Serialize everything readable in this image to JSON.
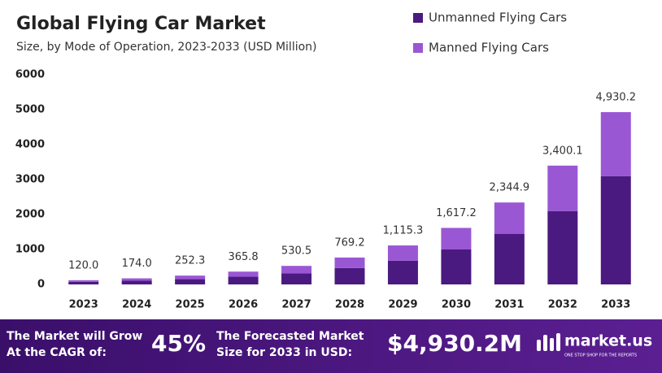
{
  "chart_data": {
    "type": "stacked-bar",
    "title": "Global Flying Car Market",
    "subtitle": "Size, by Mode of Operation, 2023-2033 (USD Million)",
    "categories": [
      "2023",
      "2024",
      "2025",
      "2026",
      "2027",
      "2028",
      "2029",
      "2030",
      "2031",
      "2032",
      "2033"
    ],
    "series": [
      {
        "name": "Unmanned Flying Cars",
        "color": "#4b1a80",
        "values": [
          72,
          105,
          150,
          220,
          320,
          470,
          680,
          1000,
          1450,
          2100,
          3100
        ]
      },
      {
        "name": "Manned Flying Cars",
        "color": "#9a57d4",
        "values": [
          48,
          69,
          102.3,
          145.8,
          210.5,
          299.2,
          435.3,
          617.2,
          894.9,
          1300.1,
          1830.2
        ]
      }
    ],
    "totals": [
      120,
      174,
      252.3,
      365.8,
      530.5,
      769.2,
      1115.3,
      1617.2,
      2344.9,
      3400.1,
      4930.2
    ],
    "total_labels": [
      "120.0",
      "174.0",
      "252.3",
      "365.8",
      "530.5",
      "769.2",
      "1,115.3",
      "1,617.2",
      "2,344.9",
      "3,400.1",
      "4,930.2"
    ],
    "ylim": [
      0,
      6000
    ],
    "yticks": [
      0,
      1000,
      2000,
      3000,
      4000,
      5000,
      6000
    ],
    "grid": false,
    "legend": "top-right"
  },
  "footer": {
    "cagr_text": [
      "The Market will Grow",
      "At the CAGR of:"
    ],
    "cagr": "45%",
    "forecast_text": [
      "The Forecasted Market",
      "Size for 2033 in USD:"
    ],
    "forecast": "$4,930.2M",
    "brand": "market.us",
    "tagline": "ONE STOP SHOP FOR THE REPORTS"
  }
}
